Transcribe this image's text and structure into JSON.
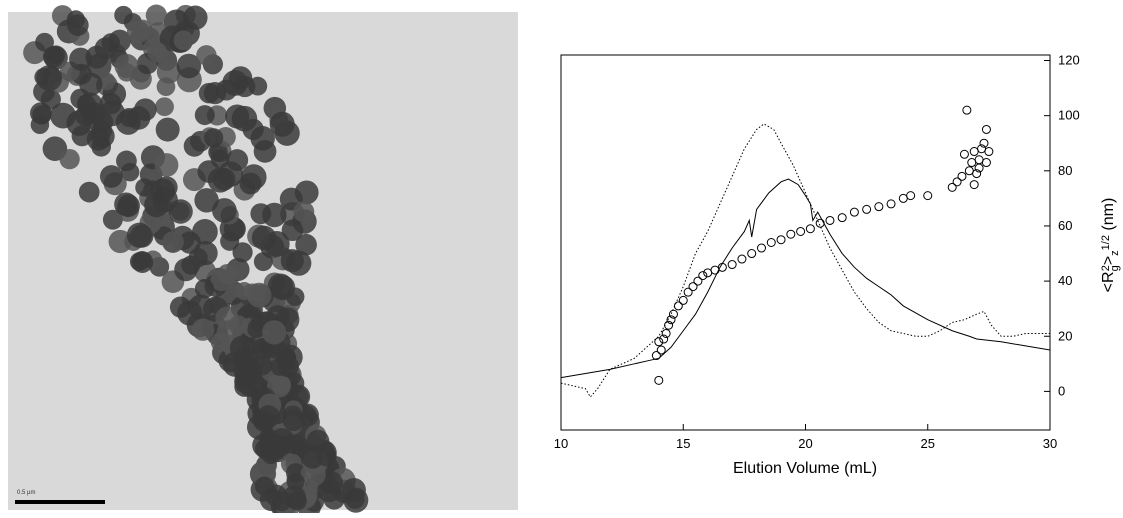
{
  "image": {
    "scale_bar_label": "0.5 µm"
  },
  "chart_data": {
    "type": "line",
    "x_label": "Elution Volume (mL)",
    "y2_label_parts": [
      "<R",
      "g",
      "2",
      ">",
      "z",
      "1/2",
      " (nm)"
    ],
    "xlim": [
      10,
      30
    ],
    "xticks": [
      10,
      15,
      20,
      25,
      30
    ],
    "y2lim": [
      -14,
      122
    ],
    "y2ticks": [
      0,
      20,
      40,
      60,
      80,
      100,
      120
    ],
    "series": [
      {
        "kind": "scatter",
        "axis": "y2",
        "color": "#000000",
        "x": [
          13.9,
          14.0,
          14.0,
          14.1,
          14.2,
          14.3,
          14.4,
          14.5,
          14.6,
          14.8,
          15.0,
          15.2,
          15.4,
          15.6,
          15.8,
          16.0,
          16.3,
          16.6,
          17.0,
          17.4,
          17.8,
          18.2,
          18.6,
          19.0,
          19.4,
          19.8,
          20.2,
          20.6,
          21.0,
          21.5,
          22.0,
          22.5,
          23.0,
          23.5,
          24.0,
          24.3,
          25.0,
          26.0,
          26.2,
          26.4,
          26.5,
          26.6,
          26.7,
          26.8,
          26.9,
          27.0,
          27.1,
          27.2,
          27.3,
          27.4,
          27.5,
          27.4,
          27.1,
          26.9
        ],
        "y": [
          13,
          4,
          18,
          15,
          19,
          21,
          24,
          26,
          28,
          31,
          33,
          36,
          38,
          40,
          42,
          43,
          44,
          45,
          46,
          48,
          50,
          52,
          54,
          55,
          57,
          58,
          59,
          61,
          62,
          63,
          65,
          66,
          67,
          68,
          70,
          71,
          71,
          74,
          76,
          78,
          86,
          102,
          80,
          83,
          87,
          79,
          84,
          88,
          90,
          95,
          87,
          83,
          81,
          75
        ]
      },
      {
        "kind": "line",
        "axis": "y2",
        "dash": "solid",
        "color": "#000000",
        "x": [
          10,
          11,
          12,
          13,
          13.5,
          14,
          14.5,
          15,
          15.5,
          16,
          16.5,
          17,
          17.5,
          17.7,
          17.8,
          18,
          18.5,
          19,
          19.3,
          19.7,
          20,
          20.2,
          20.3,
          20.5,
          21,
          21.5,
          22,
          22.5,
          23,
          23.5,
          24,
          25,
          26,
          26.7,
          27,
          28,
          29,
          30
        ],
        "y": [
          5,
          6.5,
          8,
          10,
          11,
          12,
          16,
          22,
          28,
          36,
          45,
          52,
          58,
          62,
          56,
          66,
          72,
          76,
          77,
          75,
          71,
          68,
          62,
          65,
          57,
          50,
          45,
          41,
          38,
          35,
          31,
          26,
          22,
          20,
          19,
          18,
          16.5,
          15
        ]
      },
      {
        "kind": "line",
        "axis": "y2",
        "dash": "dotted",
        "color": "#000000",
        "x": [
          10,
          10.5,
          11,
          11.2,
          11.5,
          12,
          12.5,
          13,
          13.5,
          14,
          14.5,
          15,
          15.5,
          16,
          16.5,
          17,
          17.5,
          18,
          18.3,
          18.7,
          19,
          19.5,
          20,
          20.5,
          21,
          21.5,
          22,
          22.5,
          23,
          23.5,
          24,
          24.5,
          25,
          25.5,
          26,
          26.5,
          27,
          27.3,
          27.6,
          28,
          28.5,
          29,
          30
        ],
        "y": [
          3,
          2,
          1,
          -2,
          1,
          8,
          10,
          12,
          16,
          20,
          28,
          38,
          50,
          58,
          68,
          78,
          88,
          95,
          97,
          95,
          90,
          82,
          72,
          62,
          52,
          44,
          36,
          30,
          25,
          22,
          21,
          20,
          20,
          22,
          25,
          26,
          28,
          29,
          24,
          20,
          20,
          21,
          21
        ]
      }
    ]
  }
}
